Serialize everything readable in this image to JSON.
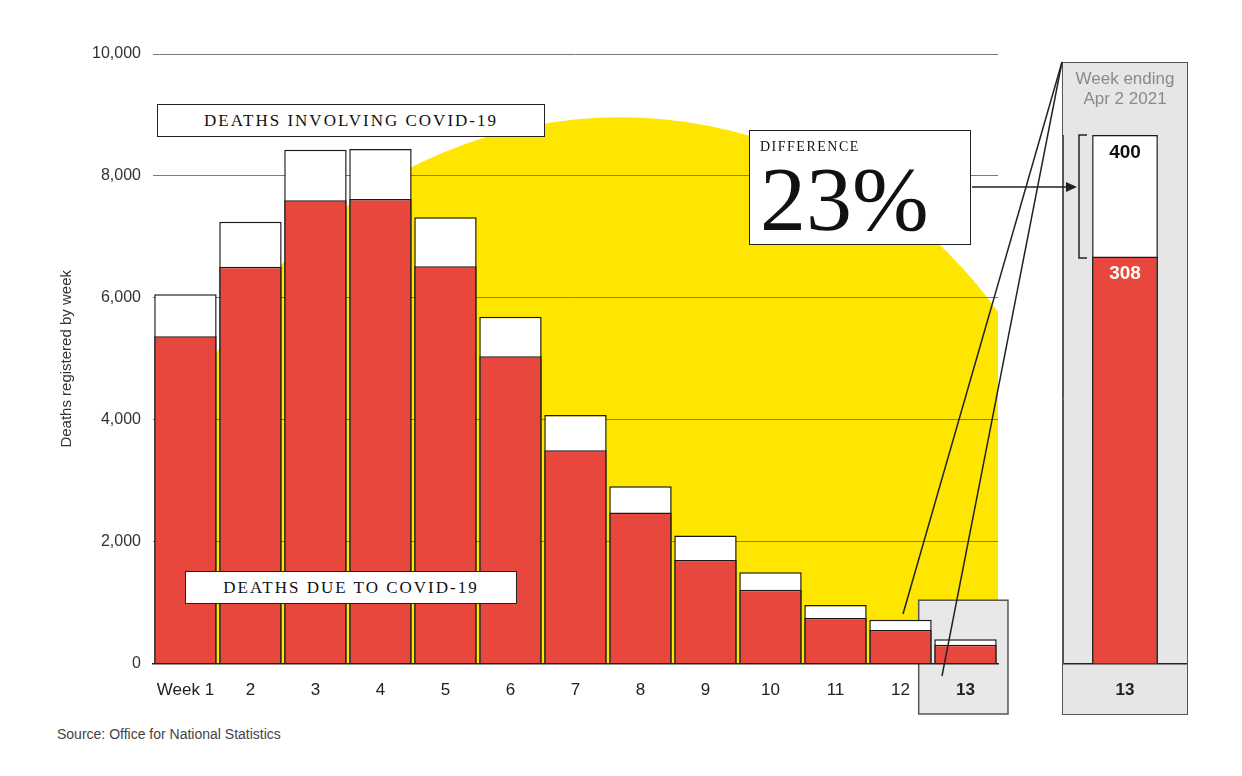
{
  "chart_data": [
    {
      "type": "bar",
      "categories": [
        "Week 1",
        "2",
        "3",
        "4",
        "5",
        "6",
        "7",
        "8",
        "9",
        "10",
        "11",
        "12",
        "13"
      ],
      "series": [
        {
          "name": "DEATHS INVOLVING COVID-19",
          "color": "#ffffff",
          "values": [
            6060,
            7250,
            8430,
            8440,
            7320,
            5690,
            4080,
            2910,
            2100,
            1500,
            960,
            720,
            400
          ]
        },
        {
          "name": "DEATHS DUE TO COVID-19",
          "color": "#e8473d",
          "values": [
            5370,
            6510,
            7600,
            7620,
            6520,
            5040,
            3500,
            2480,
            1700,
            1210,
            750,
            550,
            308
          ]
        }
      ],
      "stacked": false,
      "y_label": "Deaths registered by week",
      "ylim": [
        0,
        10000
      ],
      "yticks": [
        0,
        {
          "value": 2000,
          "label": "2,000"
        },
        {
          "value": 4000,
          "label": "4,000"
        },
        {
          "value": 6000,
          "label": "6,000"
        },
        {
          "value": 8000,
          "label": "8,000"
        },
        {
          "value": 10000,
          "label": "10,000"
        }
      ],
      "grid": true,
      "annotations": [
        "DIFFERENCE",
        "23%"
      ],
      "source": "Source: Office for National Statistics"
    },
    {
      "type": "bar",
      "title": "Week ending Apr 2 2021",
      "categories": [
        "13"
      ],
      "series": [
        {
          "color": "#ffffff",
          "values": [
            400
          ]
        },
        {
          "color": "#e8473d",
          "values": [
            308
          ]
        }
      ],
      "stacked": false,
      "ylim": [
        0,
        400
      ],
      "grid": false,
      "data_labels": true,
      "tick_labels": "x"
    }
  ]
}
